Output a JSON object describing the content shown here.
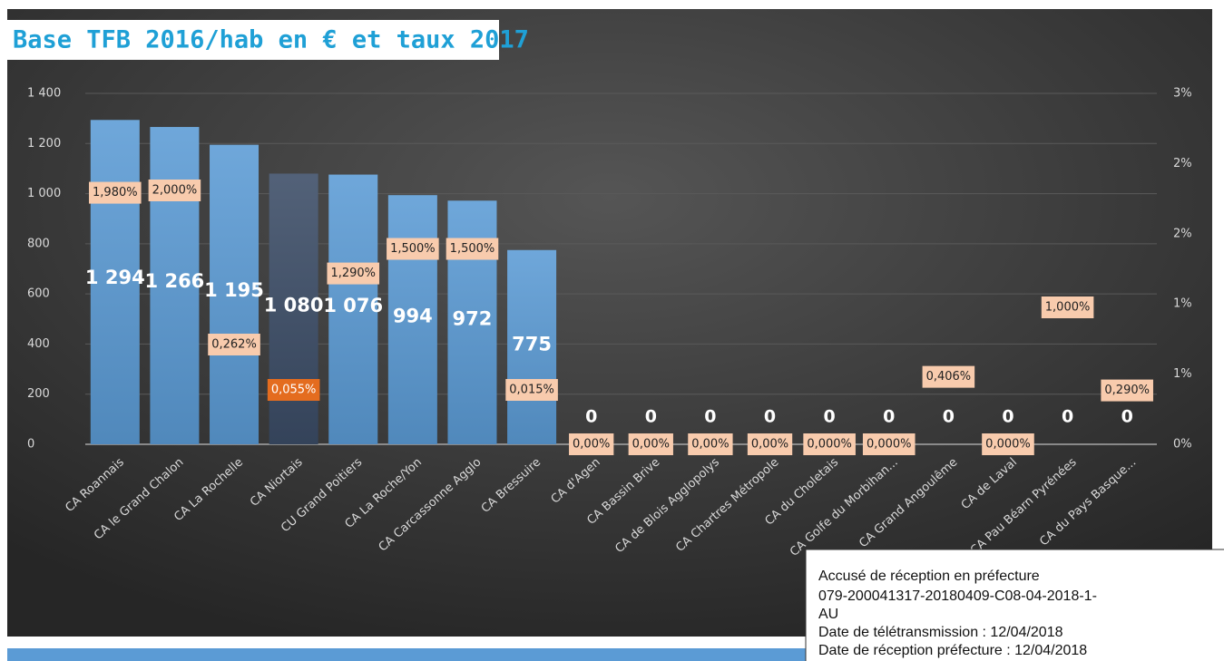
{
  "chart_data": {
    "type": "bar",
    "title": "Base TFB 2016/hab en € et taux 2017",
    "categories": [
      "CA Roannais",
      "CA le Grand Chalon",
      "CA La Rochelle",
      "CA Niortais",
      "CU Grand Poitiers",
      "CA La Roche/Yon",
      "CA Carcassonne Agglo",
      "CA Bressuire",
      "CA d'Agen",
      "CA Bassin Brive",
      "CA de Blois Agglopolys",
      "CA Chartres Métropole",
      "CA du Choletais",
      "CA Golfe du Morbihan...",
      "CA Grand Angoulême",
      "CA de Laval",
      "CA Pau Béarn Pyrénées",
      "CA du Pays Basque..."
    ],
    "series": [
      {
        "type": "bar",
        "colors": [
          "#5b9bd5",
          "#5b9bd5",
          "#5b9bd5",
          "#3b4c66",
          "#5b9bd5",
          "#5b9bd5",
          "#5b9bd5",
          "#5b9bd5",
          "#5b9bd5",
          "#5b9bd5",
          "#5b9bd5",
          "#5b9bd5",
          "#5b9bd5",
          "#5b9bd5",
          "#5b9bd5",
          "#5b9bd5",
          "#5b9bd5",
          "#5b9bd5"
        ],
        "values": [
          1294,
          1266,
          1195,
          1080,
          1076,
          994,
          972,
          775,
          0,
          0,
          0,
          0,
          0,
          0,
          0,
          0,
          0,
          0
        ],
        "value_labels": [
          "1 294",
          "1 266",
          "1 195",
          "1 080",
          "1 076",
          "994",
          "972",
          "775",
          "0",
          "0",
          "0",
          "0",
          "0",
          "0",
          "0",
          "0",
          "0",
          "0"
        ]
      },
      {
        "type": "label",
        "axis": "y2",
        "colors": [
          "#f8cbad",
          "#f8cbad",
          "#f8cbad",
          "#e46c1f",
          "#f8cbad",
          "#f8cbad",
          "#f8cbad",
          "#f8cbad",
          "#f8cbad",
          "#f8cbad",
          "#f8cbad",
          "#f8cbad",
          "#f8cbad",
          "#f8cbad",
          "#f8cbad",
          "#f8cbad",
          "#f8cbad",
          "#f8cbad"
        ],
        "values": [
          1.98,
          2.0,
          0.262,
          0.055,
          1.29,
          1.5,
          1.5,
          0.015,
          0,
          0,
          0,
          0,
          0,
          0,
          0.406,
          0,
          1.0,
          0.29
        ],
        "value_labels": [
          "1,980%",
          "2,000%",
          "0,262%",
          "0,055%",
          "1,290%",
          "1,500%",
          "1,500%",
          "0,015%",
          "0,00%",
          "0,00%",
          "0,00%",
          "0,00%",
          "0,000%",
          "0,000%",
          "0,406%",
          "0,000%",
          "1,000%",
          "0,290%"
        ]
      }
    ],
    "ylim": [
      0,
      1400
    ],
    "yticks": [
      0,
      200,
      400,
      600,
      800,
      {
        "value": 1000,
        "label": "1 000"
      },
      {
        "value": 1200,
        "label": "1 200"
      },
      {
        "value": 1400,
        "label": "1 400"
      }
    ],
    "y2lim": [
      0,
      3
    ],
    "y2ticks": [
      {
        "value": 0,
        "label": "0%"
      },
      {
        "value": 0.6,
        "label": "1%"
      },
      {
        "value": 1.2,
        "label": "1%"
      },
      {
        "value": 1.8,
        "label": "2%"
      },
      {
        "value": 2.4,
        "label": "2%"
      },
      {
        "value": 3,
        "label": "3%"
      }
    ],
    "grid": true
  },
  "stamp": {
    "lines": [
      "Accusé de réception en préfecture",
      "079-200041317-20180409-C08-04-2018-1-",
      "AU",
      "Date de télétransmission : 12/04/2018",
      "Date de réception préfecture : 12/04/2018"
    ]
  }
}
